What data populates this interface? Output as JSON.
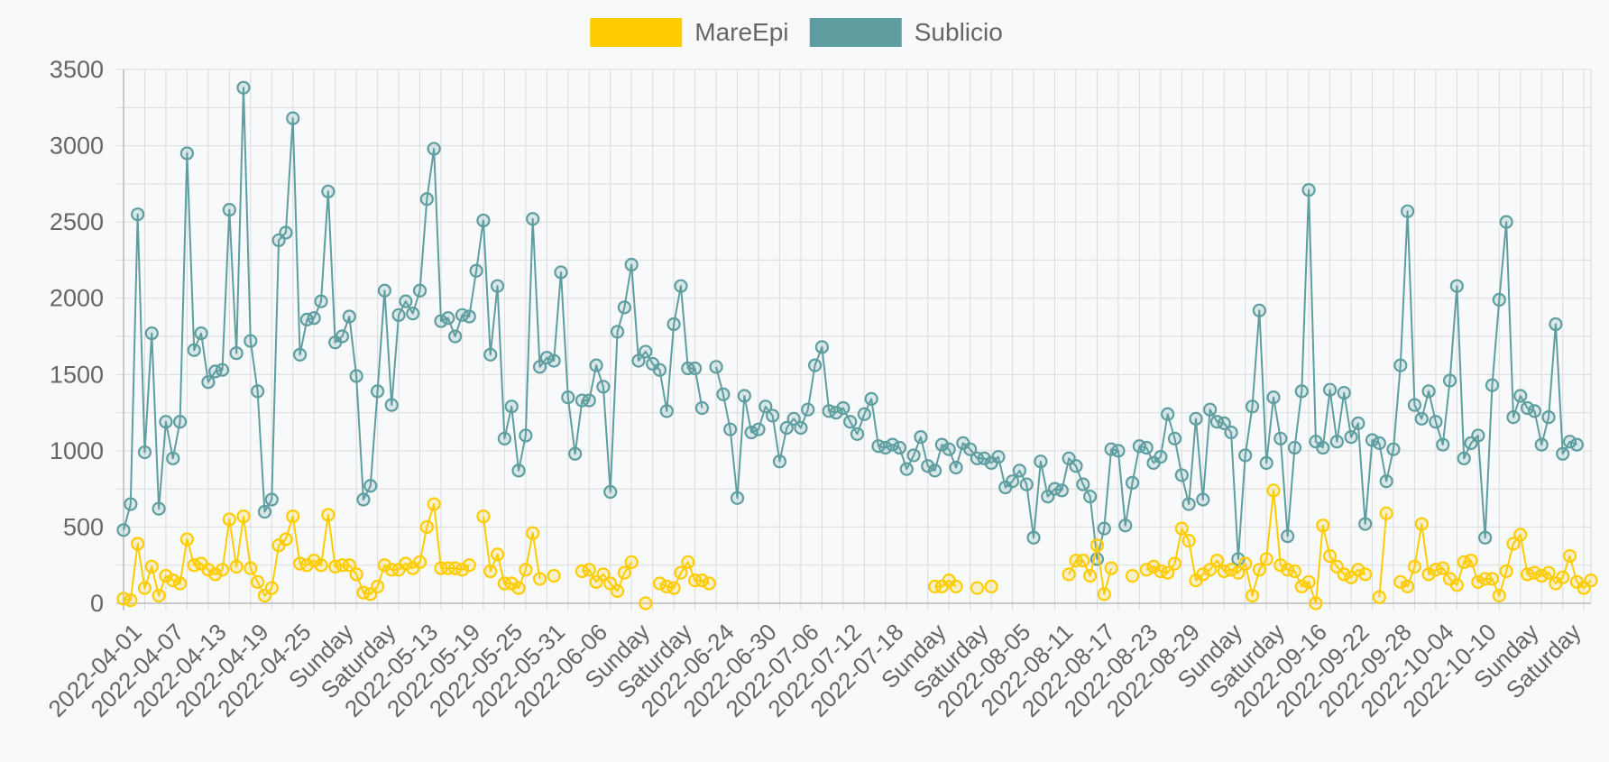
{
  "chart_data": {
    "type": "line",
    "grid": true,
    "legend_position": "top-center",
    "ylim": [
      0,
      3500
    ],
    "y_ticks": [
      0,
      500,
      1000,
      1500,
      2000,
      2500,
      3000,
      3500
    ],
    "y_tick_labels": [
      "0",
      "500",
      "1000",
      "1500",
      "2000",
      "2500",
      "3000",
      "3500"
    ],
    "x_tick_labels": [
      "2022-04-01",
      "2022-04-07",
      "2022-04-13",
      "2022-04-19",
      "2022-04-25",
      "Sunday",
      "Saturday",
      "2022-05-13",
      "2022-05-19",
      "2022-05-25",
      "2022-05-31",
      "2022-06-06",
      "Sunday",
      "Saturday",
      "2022-06-24",
      "2022-06-30",
      "2022-07-06",
      "2022-07-12",
      "2022-07-18",
      "Sunday",
      "Saturday",
      "2022-08-05",
      "2022-08-11",
      "2022-08-17",
      "2022-08-23",
      "2022-08-29",
      "Sunday",
      "Saturday",
      "2022-09-16",
      "2022-09-22",
      "2022-09-28",
      "2022-10-04",
      "2022-10-10",
      "Sunday",
      "Saturday"
    ],
    "tick_every": 6,
    "x_count": 209,
    "series": [
      {
        "name": "Sublicio",
        "color": "#5f9ea0",
        "values": [
          480,
          650,
          2550,
          990,
          1770,
          620,
          1190,
          950,
          1190,
          2950,
          1660,
          1770,
          1450,
          1520,
          1530,
          2580,
          1640,
          3380,
          1720,
          1390,
          600,
          680,
          2380,
          2430,
          3180,
          1630,
          1860,
          1870,
          1980,
          2700,
          1710,
          1750,
          1880,
          1490,
          680,
          770,
          1390,
          2050,
          1300,
          1890,
          1980,
          1900,
          2050,
          2650,
          2980,
          1850,
          1870,
          1750,
          1890,
          1880,
          2180,
          2510,
          1630,
          2080,
          1080,
          1290,
          870,
          1100,
          2520,
          1550,
          1610,
          1590,
          2170,
          1350,
          980,
          1330,
          1330,
          1560,
          1420,
          730,
          1780,
          1940,
          2220,
          1590,
          1650,
          1570,
          1530,
          1260,
          1830,
          2080,
          1540,
          1540,
          1280,
          null,
          1550,
          1370,
          1140,
          690,
          1360,
          1120,
          1140,
          1290,
          1230,
          930,
          1150,
          1210,
          1150,
          1270,
          1560,
          1680,
          1260,
          1250,
          1280,
          1190,
          1110,
          1240,
          1340,
          1030,
          1020,
          1040,
          1020,
          880,
          970,
          1090,
          900,
          870,
          1040,
          1010,
          890,
          1050,
          1010,
          950,
          950,
          920,
          960,
          760,
          800,
          870,
          780,
          430,
          930,
          700,
          750,
          740,
          950,
          900,
          780,
          700,
          290,
          490,
          1010,
          1000,
          510,
          790,
          1030,
          1020,
          920,
          960,
          1240,
          1080,
          840,
          650,
          1210,
          680,
          1270,
          1190,
          1180,
          1120,
          290,
          970,
          1290,
          1920,
          920,
          1350,
          1080,
          440,
          1020,
          1390,
          2710,
          1060,
          1020,
          1400,
          1060,
          1380,
          1090,
          1180,
          520,
          1070,
          1050,
          800,
          1010,
          1560,
          2570,
          1300,
          1210,
          1390,
          1190,
          1040,
          1460,
          2080,
          950,
          1050,
          1100,
          430,
          1430,
          1990,
          2500,
          1220,
          1360,
          1280,
          1260,
          1040,
          1220,
          1830,
          980,
          1060,
          1040
        ]
      },
      {
        "name": "MareEpi",
        "color": "#ffcc00",
        "values": [
          30,
          20,
          390,
          100,
          240,
          50,
          180,
          150,
          130,
          420,
          250,
          260,
          220,
          190,
          220,
          550,
          240,
          570,
          230,
          140,
          50,
          100,
          380,
          420,
          570,
          260,
          250,
          280,
          250,
          580,
          240,
          250,
          250,
          190,
          70,
          60,
          110,
          250,
          220,
          220,
          260,
          230,
          270,
          500,
          650,
          230,
          230,
          230,
          220,
          250,
          null,
          570,
          210,
          320,
          130,
          130,
          100,
          220,
          460,
          160,
          null,
          180,
          null,
          null,
          null,
          210,
          220,
          140,
          190,
          130,
          80,
          200,
          270,
          null,
          0,
          null,
          130,
          110,
          100,
          200,
          270,
          150,
          150,
          130,
          null,
          null,
          null,
          null,
          null,
          null,
          null,
          null,
          null,
          null,
          null,
          null,
          null,
          null,
          null,
          null,
          null,
          null,
          null,
          null,
          null,
          null,
          null,
          null,
          null,
          null,
          null,
          null,
          null,
          null,
          null,
          110,
          110,
          150,
          110,
          null,
          null,
          100,
          null,
          110,
          null,
          null,
          null,
          null,
          null,
          null,
          null,
          null,
          null,
          null,
          190,
          280,
          280,
          180,
          380,
          60,
          230,
          null,
          null,
          180,
          null,
          220,
          240,
          210,
          200,
          260,
          490,
          410,
          150,
          190,
          220,
          280,
          210,
          220,
          200,
          260,
          50,
          220,
          290,
          740,
          250,
          220,
          210,
          110,
          140,
          0,
          510,
          310,
          240,
          190,
          170,
          220,
          190,
          null,
          40,
          590,
          null,
          140,
          110,
          240,
          520,
          190,
          220,
          230,
          160,
          120,
          270,
          280,
          140,
          160,
          160,
          50,
          210,
          390,
          450,
          190,
          200,
          180,
          200,
          130,
          170,
          310,
          140,
          100,
          150
        ]
      }
    ]
  }
}
